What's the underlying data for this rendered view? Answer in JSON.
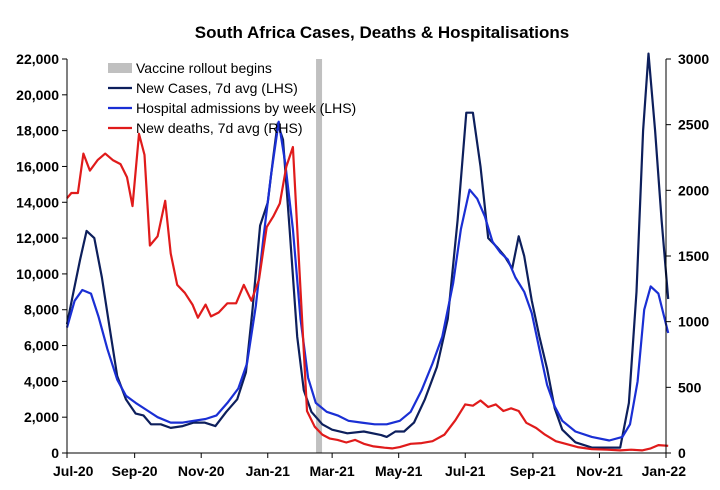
{
  "chart_data": {
    "type": "line",
    "title": "South Africa Cases, Deaths & Hospitalisations",
    "xlabel": "",
    "ylabel": "",
    "x_tick_labels": [
      "Jul-20",
      "Sep-20",
      "Nov-20",
      "Jan-21",
      "Mar-21",
      "May-21",
      "Jul-21",
      "Sep-21",
      "Nov-21",
      "Jan-22"
    ],
    "x_tick_dates": [
      "2020-07-01",
      "2020-09-01",
      "2020-11-01",
      "2021-01-01",
      "2021-03-01",
      "2021-05-01",
      "2021-07-01",
      "2021-09-01",
      "2021-11-01",
      "2022-01-01"
    ],
    "xlim": [
      "2020-07-01",
      "2022-01-01"
    ],
    "y_left": {
      "lim": [
        0,
        22000
      ],
      "ticks": [
        0,
        2000,
        4000,
        6000,
        8000,
        10000,
        12000,
        14000,
        16000,
        18000,
        20000,
        22000
      ],
      "tick_labels": [
        "0",
        "2,000",
        "4,000",
        "6,000",
        "8,000",
        "10,000",
        "12,000",
        "14,000",
        "16,000",
        "18,000",
        "20,000",
        "22,000"
      ]
    },
    "y_right": {
      "lim": [
        0,
        3000
      ],
      "ticks": [
        0,
        500,
        1000,
        1500,
        2000,
        2500,
        3000
      ],
      "tick_labels": [
        "0",
        "500",
        "1000",
        "1500",
        "2000",
        "2500",
        "3000"
      ]
    },
    "grid": false,
    "legend_position": "top-left",
    "annotations": [
      {
        "type": "vertical-band",
        "name": "Vaccine rollout begins",
        "date": "2021-02-17",
        "color": "#c0c0c0"
      }
    ],
    "series": [
      {
        "name": "Vaccine rollout begins",
        "kind": "band",
        "color": "#c0c0c0",
        "axis": "left",
        "points": []
      },
      {
        "name": "New Cases, 7d avg (LHS)",
        "kind": "line",
        "color": "#0d1f5c",
        "axis": "left",
        "points": [
          [
            "2020-07-01",
            7200
          ],
          [
            "2020-07-07",
            9000
          ],
          [
            "2020-07-13",
            10800
          ],
          [
            "2020-07-19",
            12400
          ],
          [
            "2020-07-26",
            12000
          ],
          [
            "2020-08-02",
            9800
          ],
          [
            "2020-08-09",
            7000
          ],
          [
            "2020-08-16",
            4300
          ],
          [
            "2020-08-24",
            3000
          ],
          [
            "2020-09-02",
            2200
          ],
          [
            "2020-09-09",
            2100
          ],
          [
            "2020-09-16",
            1600
          ],
          [
            "2020-09-25",
            1600
          ],
          [
            "2020-10-04",
            1400
          ],
          [
            "2020-10-15",
            1500
          ],
          [
            "2020-10-25",
            1700
          ],
          [
            "2020-11-04",
            1700
          ],
          [
            "2020-11-14",
            1500
          ],
          [
            "2020-11-24",
            2300
          ],
          [
            "2020-12-04",
            3000
          ],
          [
            "2020-12-12",
            4500
          ],
          [
            "2020-12-18",
            8000
          ],
          [
            "2020-12-25",
            12700
          ],
          [
            "2021-01-01",
            14000
          ],
          [
            "2021-01-06",
            16500
          ],
          [
            "2021-01-10",
            18400
          ],
          [
            "2021-01-15",
            17500
          ],
          [
            "2021-01-21",
            12500
          ],
          [
            "2021-01-28",
            6500
          ],
          [
            "2021-02-03",
            3500
          ],
          [
            "2021-02-10",
            2300
          ],
          [
            "2021-02-20",
            1600
          ],
          [
            "2021-03-01",
            1300
          ],
          [
            "2021-03-15",
            1100
          ],
          [
            "2021-03-30",
            1200
          ],
          [
            "2021-04-15",
            1000
          ],
          [
            "2021-04-20",
            900
          ],
          [
            "2021-04-28",
            1200
          ],
          [
            "2021-05-06",
            1200
          ],
          [
            "2021-05-15",
            1700
          ],
          [
            "2021-05-25",
            3000
          ],
          [
            "2021-06-05",
            4800
          ],
          [
            "2021-06-15",
            7500
          ],
          [
            "2021-06-24",
            13000
          ],
          [
            "2021-07-02",
            19000
          ],
          [
            "2021-07-08",
            19000
          ],
          [
            "2021-07-15",
            16000
          ],
          [
            "2021-07-22",
            12000
          ],
          [
            "2021-07-30",
            11500
          ],
          [
            "2021-08-06",
            11000
          ],
          [
            "2021-08-13",
            10300
          ],
          [
            "2021-08-19",
            12100
          ],
          [
            "2021-08-24",
            11000
          ],
          [
            "2021-08-31",
            8500
          ],
          [
            "2021-09-07",
            6500
          ],
          [
            "2021-09-14",
            4700
          ],
          [
            "2021-09-21",
            2500
          ],
          [
            "2021-09-28",
            1300
          ],
          [
            "2021-10-10",
            600
          ],
          [
            "2021-10-25",
            300
          ],
          [
            "2021-11-10",
            300
          ],
          [
            "2021-11-20",
            300
          ],
          [
            "2021-11-28",
            2800
          ],
          [
            "2021-12-05",
            9000
          ],
          [
            "2021-12-11",
            18000
          ],
          [
            "2021-12-16",
            22300
          ],
          [
            "2021-12-22",
            18000
          ],
          [
            "2021-12-28",
            13000
          ],
          [
            "2022-01-03",
            8600
          ]
        ]
      },
      {
        "name": "Hospital admissions by week (LHS)",
        "kind": "line",
        "color": "#1a2fd4",
        "axis": "left",
        "points": [
          [
            "2020-07-01",
            7000
          ],
          [
            "2020-07-08",
            8500
          ],
          [
            "2020-07-15",
            9100
          ],
          [
            "2020-07-23",
            8900
          ],
          [
            "2020-07-30",
            7600
          ],
          [
            "2020-08-07",
            5800
          ],
          [
            "2020-08-16",
            4100
          ],
          [
            "2020-08-24",
            3200
          ],
          [
            "2020-09-02",
            2800
          ],
          [
            "2020-09-12",
            2400
          ],
          [
            "2020-09-22",
            2000
          ],
          [
            "2020-10-04",
            1700
          ],
          [
            "2020-10-15",
            1700
          ],
          [
            "2020-10-25",
            1800
          ],
          [
            "2020-11-05",
            1900
          ],
          [
            "2020-11-15",
            2100
          ],
          [
            "2020-11-25",
            2800
          ],
          [
            "2020-12-05",
            3600
          ],
          [
            "2020-12-13",
            5000
          ],
          [
            "2020-12-21",
            8200
          ],
          [
            "2020-12-28",
            12000
          ],
          [
            "2021-01-04",
            15500
          ],
          [
            "2021-01-11",
            18500
          ],
          [
            "2021-01-17",
            16200
          ],
          [
            "2021-01-24",
            12500
          ],
          [
            "2021-01-31",
            7500
          ],
          [
            "2021-02-07",
            4200
          ],
          [
            "2021-02-14",
            2800
          ],
          [
            "2021-02-24",
            2300
          ],
          [
            "2021-03-06",
            2100
          ],
          [
            "2021-03-16",
            1800
          ],
          [
            "2021-03-28",
            1700
          ],
          [
            "2021-04-09",
            1600
          ],
          [
            "2021-04-20",
            1600
          ],
          [
            "2021-05-02",
            1800
          ],
          [
            "2021-05-12",
            2300
          ],
          [
            "2021-05-22",
            3500
          ],
          [
            "2021-06-01",
            5000
          ],
          [
            "2021-06-10",
            6500
          ],
          [
            "2021-06-20",
            9500
          ],
          [
            "2021-06-27",
            12500
          ],
          [
            "2021-07-05",
            14700
          ],
          [
            "2021-07-12",
            14200
          ],
          [
            "2021-07-19",
            13200
          ],
          [
            "2021-07-26",
            11800
          ],
          [
            "2021-08-02",
            11200
          ],
          [
            "2021-08-09",
            10800
          ],
          [
            "2021-08-16",
            9800
          ],
          [
            "2021-08-24",
            9000
          ],
          [
            "2021-08-31",
            7800
          ],
          [
            "2021-09-07",
            5800
          ],
          [
            "2021-09-14",
            3800
          ],
          [
            "2021-09-21",
            2600
          ],
          [
            "2021-09-28",
            1800
          ],
          [
            "2021-10-10",
            1200
          ],
          [
            "2021-10-25",
            900
          ],
          [
            "2021-11-10",
            700
          ],
          [
            "2021-11-22",
            900
          ],
          [
            "2021-11-29",
            1600
          ],
          [
            "2021-12-06",
            4000
          ],
          [
            "2021-12-12",
            8000
          ],
          [
            "2021-12-18",
            9300
          ],
          [
            "2021-12-25",
            8900
          ],
          [
            "2022-01-03",
            6700
          ]
        ]
      },
      {
        "name": "New deaths, 7d avg (RHS)",
        "kind": "line",
        "color": "#e01b1b",
        "axis": "right",
        "points": [
          [
            "2020-07-01",
            1940
          ],
          [
            "2020-07-05",
            1980
          ],
          [
            "2020-07-11",
            1980
          ],
          [
            "2020-07-16",
            2280
          ],
          [
            "2020-07-22",
            2150
          ],
          [
            "2020-07-29",
            2230
          ],
          [
            "2020-08-05",
            2280
          ],
          [
            "2020-08-12",
            2230
          ],
          [
            "2020-08-19",
            2200
          ],
          [
            "2020-08-25",
            2100
          ],
          [
            "2020-08-30",
            1880
          ],
          [
            "2020-09-05",
            2430
          ],
          [
            "2020-09-10",
            2270
          ],
          [
            "2020-09-15",
            1580
          ],
          [
            "2020-09-22",
            1650
          ],
          [
            "2020-09-29",
            1920
          ],
          [
            "2020-10-04",
            1520
          ],
          [
            "2020-10-10",
            1280
          ],
          [
            "2020-10-17",
            1220
          ],
          [
            "2020-10-24",
            1130
          ],
          [
            "2020-10-29",
            1030
          ],
          [
            "2020-11-05",
            1130
          ],
          [
            "2020-11-10",
            1040
          ],
          [
            "2020-11-17",
            1070
          ],
          [
            "2020-11-25",
            1140
          ],
          [
            "2020-12-03",
            1140
          ],
          [
            "2020-12-10",
            1280
          ],
          [
            "2020-12-17",
            1160
          ],
          [
            "2020-12-24",
            1320
          ],
          [
            "2020-12-31",
            1720
          ],
          [
            "2021-01-06",
            1800
          ],
          [
            "2021-01-12",
            1900
          ],
          [
            "2021-01-18",
            2180
          ],
          [
            "2021-01-24",
            2330
          ],
          [
            "2021-01-30",
            1400
          ],
          [
            "2021-02-06",
            320
          ],
          [
            "2021-02-13",
            200
          ],
          [
            "2021-02-20",
            140
          ],
          [
            "2021-02-27",
            110
          ],
          [
            "2021-03-06",
            100
          ],
          [
            "2021-03-14",
            80
          ],
          [
            "2021-03-22",
            100
          ],
          [
            "2021-03-30",
            70
          ],
          [
            "2021-04-08",
            50
          ],
          [
            "2021-04-18",
            40
          ],
          [
            "2021-04-25",
            35
          ],
          [
            "2021-05-02",
            45
          ],
          [
            "2021-05-12",
            70
          ],
          [
            "2021-05-22",
            75
          ],
          [
            "2021-06-01",
            90
          ],
          [
            "2021-06-12",
            140
          ],
          [
            "2021-06-22",
            250
          ],
          [
            "2021-07-01",
            370
          ],
          [
            "2021-07-08",
            360
          ],
          [
            "2021-07-15",
            400
          ],
          [
            "2021-07-22",
            350
          ],
          [
            "2021-07-29",
            370
          ],
          [
            "2021-08-05",
            320
          ],
          [
            "2021-08-12",
            340
          ],
          [
            "2021-08-19",
            320
          ],
          [
            "2021-08-26",
            230
          ],
          [
            "2021-09-04",
            190
          ],
          [
            "2021-09-12",
            140
          ],
          [
            "2021-09-22",
            90
          ],
          [
            "2021-10-01",
            70
          ],
          [
            "2021-10-12",
            45
          ],
          [
            "2021-10-25",
            30
          ],
          [
            "2021-11-08",
            25
          ],
          [
            "2021-11-20",
            20
          ],
          [
            "2021-11-30",
            25
          ],
          [
            "2021-12-10",
            20
          ],
          [
            "2021-12-18",
            35
          ],
          [
            "2021-12-25",
            60
          ],
          [
            "2022-01-03",
            55
          ]
        ]
      }
    ]
  }
}
